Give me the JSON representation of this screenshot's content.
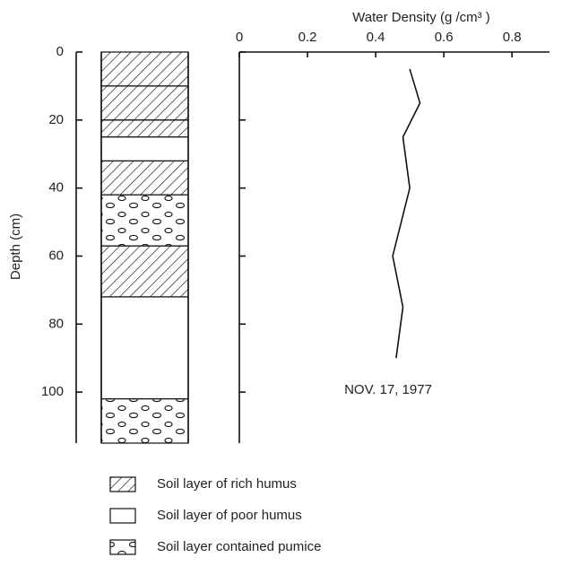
{
  "chart_data": {
    "type": "line",
    "x_label": "Water Density (g /cm³ )",
    "y_label": "Depth (cm)",
    "xlim": [
      0,
      0.91
    ],
    "xticks": [
      0,
      0.2,
      0.4,
      0.6,
      0.8
    ],
    "ylim": [
      0,
      115
    ],
    "yticks": [
      0,
      20,
      40,
      60,
      80,
      100
    ],
    "y_reversed": true,
    "annotation": "NOV. 17, 1977",
    "color": "#111111",
    "depths": [
      5,
      15,
      25,
      40,
      60,
      75,
      90
    ],
    "values": [
      0.5,
      0.53,
      0.48,
      0.5,
      0.45,
      0.48,
      0.46
    ],
    "legend": [
      {
        "label": "Soil layer of rich humus",
        "layers": [
          [
            0,
            10
          ],
          [
            10,
            20
          ],
          [
            20,
            25
          ],
          [
            32,
            42
          ],
          [
            57,
            72
          ]
        ]
      },
      {
        "label": "Soil layer of poor humus",
        "layers": [
          [
            25,
            32
          ],
          [
            72,
            102
          ]
        ]
      },
      {
        "label": "Soil layer contained pumice",
        "layers": [
          [
            42,
            57
          ],
          [
            102,
            115
          ]
        ]
      }
    ]
  }
}
